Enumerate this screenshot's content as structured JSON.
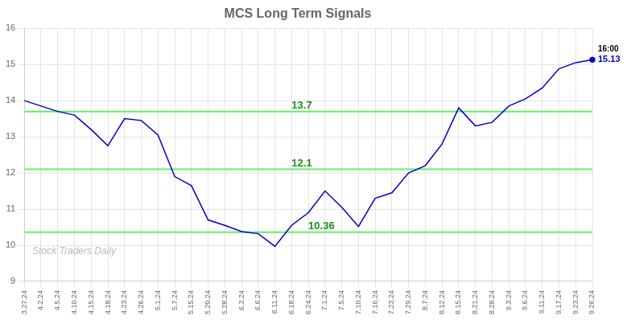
{
  "chart_data": {
    "type": "line",
    "title": "MCS Long Term Signals",
    "watermark": "Stock Traders Daily",
    "categories": [
      "3.27.24",
      "4.2.24",
      "4.5.24",
      "4.10.24",
      "4.15.24",
      "4.18.24",
      "4.23.24",
      "4.26.24",
      "5.1.24",
      "5.7.24",
      "5.15.24",
      "5.20.24",
      "5.28.24",
      "6.3.24",
      "6.6.24",
      "6.11.24",
      "6.18.24",
      "6.24.24",
      "7.1.24",
      "7.5.24",
      "7.10.24",
      "7.16.24",
      "7.23.24",
      "7.29.24",
      "8.7.24",
      "8.12.24",
      "8.15.24",
      "8.21.24",
      "8.28.24",
      "9.3.24",
      "9.6.24",
      "9.11.24",
      "9.17.24",
      "9.23.24",
      "9.26.24"
    ],
    "values": [
      14.0,
      13.85,
      13.7,
      13.6,
      13.2,
      12.75,
      13.5,
      13.45,
      13.05,
      11.9,
      11.65,
      10.7,
      10.55,
      10.38,
      10.32,
      9.97,
      10.55,
      10.9,
      11.5,
      11.05,
      10.52,
      11.3,
      11.45,
      12.0,
      12.2,
      12.8,
      13.8,
      13.3,
      13.4,
      13.85,
      14.05,
      14.35,
      14.88,
      15.05,
      15.13
    ],
    "color": "#0000cc",
    "ylim": [
      9,
      16
    ],
    "yticks": [
      9,
      10,
      11,
      12,
      13,
      14,
      15,
      16
    ],
    "grid": true,
    "reference_lines": [
      {
        "value": 13.7,
        "label": "13.7"
      },
      {
        "value": 12.1,
        "label": "12.1"
      },
      {
        "value": 10.36,
        "label": "10.36"
      }
    ],
    "reference_line_color": "#66ee66",
    "reference_label_color": "#228822",
    "annotations": [
      {
        "text": "16:00",
        "x": "9.26.24",
        "y": 15.13,
        "color": "#000000"
      },
      {
        "text": "15.13",
        "x": "9.26.24",
        "y": 15.13,
        "color": "#0000cc"
      }
    ]
  }
}
